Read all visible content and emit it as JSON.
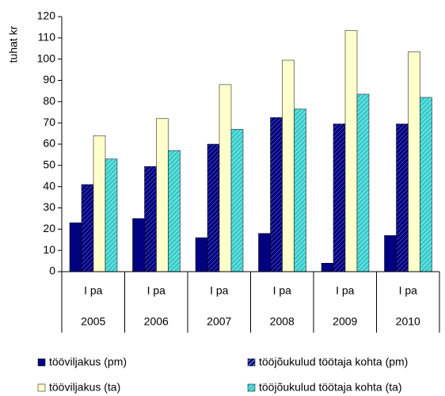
{
  "chart_data": {
    "type": "bar",
    "y_label": "tuhat kr",
    "categories": [
      "2005",
      "2006",
      "2007",
      "2008",
      "2009",
      "2010"
    ],
    "period_labels": [
      "I pa",
      "I pa",
      "I pa",
      "I pa",
      "I pa",
      "I pa"
    ],
    "series": [
      {
        "name": "tööviljakus (pm)",
        "color": "#000080",
        "hatched": false,
        "values": [
          23,
          25,
          16,
          18,
          4,
          17
        ]
      },
      {
        "name": "tööjõukulud töötaja kohta (pm)",
        "color": "#000080",
        "hatched": true,
        "values": [
          41,
          49.5,
          60,
          72.5,
          69.5,
          69.5
        ]
      },
      {
        "name": "tööviljakus (ta)",
        "color": "#FFFFCC",
        "hatched": false,
        "values": [
          64,
          72,
          88,
          99.5,
          113.5,
          103.5
        ]
      },
      {
        "name": "tööjõukulud töötaja kohta (ta)",
        "color": "#33CCCC",
        "hatched": true,
        "values": [
          53,
          57,
          67,
          76.5,
          83.5,
          82
        ]
      }
    ],
    "ylim": [
      0,
      120
    ],
    "yticks": [
      0,
      10,
      20,
      30,
      40,
      50,
      60,
      70,
      80,
      90,
      100,
      110,
      120
    ],
    "grid": false
  }
}
